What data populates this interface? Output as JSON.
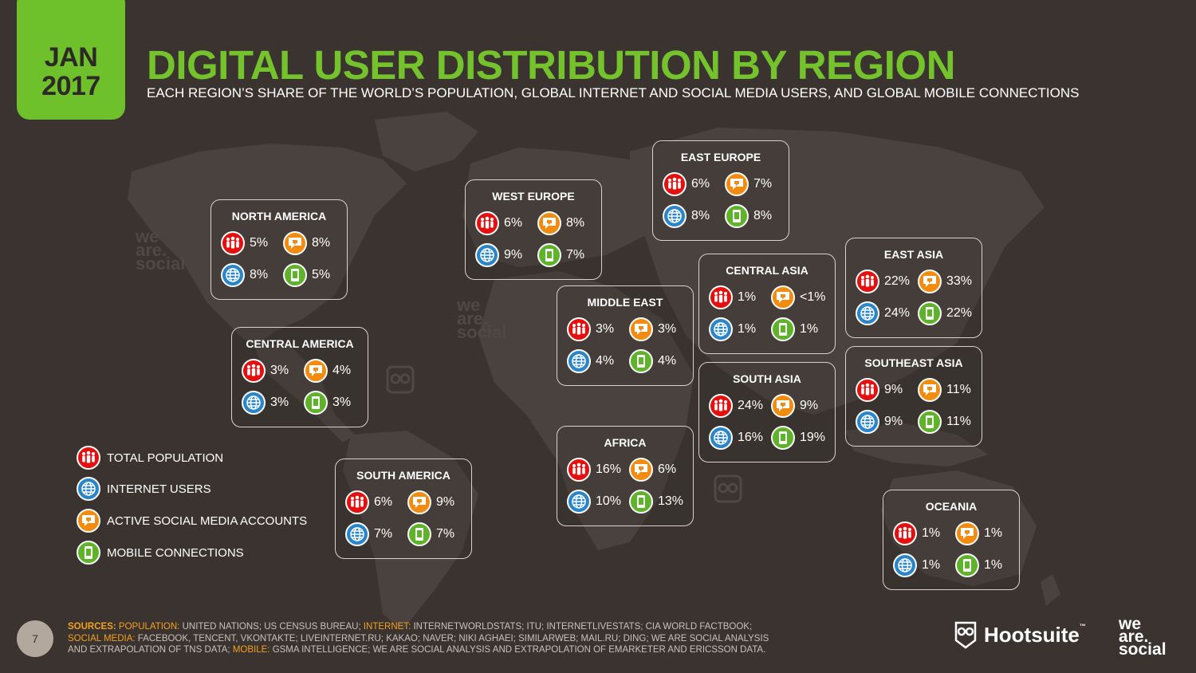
{
  "badge": {
    "month": "JAN",
    "year": "2017"
  },
  "title": "DIGITAL USER DISTRIBUTION BY REGION",
  "subtitle": "EACH REGION’S SHARE OF THE WORLD’S POPULATION, GLOBAL INTERNET AND SOCIAL MEDIA USERS, AND GLOBAL MOBILE CONNECTIONS",
  "colors": {
    "population": "#e3100f",
    "internet": "#2a86c8",
    "social": "#f28c10",
    "mobile": "#5fb32a",
    "accent": "#74c32d"
  },
  "icons": {
    "population": "people-icon",
    "internet": "globe-icon",
    "social": "thumbs-down-speech-icon",
    "mobile": "mobile-phone-icon"
  },
  "regions": [
    {
      "name": "NORTH AMERICA",
      "population": "5%",
      "social": "8%",
      "internet": "8%",
      "mobile": "5%"
    },
    {
      "name": "CENTRAL AMERICA",
      "population": "3%",
      "social": "4%",
      "internet": "3%",
      "mobile": "3%"
    },
    {
      "name": "SOUTH AMERICA",
      "population": "6%",
      "social": "9%",
      "internet": "7%",
      "mobile": "7%"
    },
    {
      "name": "WEST EUROPE",
      "population": "6%",
      "social": "8%",
      "internet": "9%",
      "mobile": "7%"
    },
    {
      "name": "EAST EUROPE",
      "population": "6%",
      "social": "7%",
      "internet": "8%",
      "mobile": "8%"
    },
    {
      "name": "MIDDLE EAST",
      "population": "3%",
      "social": "3%",
      "internet": "4%",
      "mobile": "4%"
    },
    {
      "name": "AFRICA",
      "population": "16%",
      "social": "6%",
      "internet": "10%",
      "mobile": "13%"
    },
    {
      "name": "CENTRAL ASIA",
      "population": "1%",
      "social": "<1%",
      "internet": "1%",
      "mobile": "1%"
    },
    {
      "name": "SOUTH ASIA",
      "population": "24%",
      "social": "9%",
      "internet": "16%",
      "mobile": "19%"
    },
    {
      "name": "EAST ASIA",
      "population": "22%",
      "social": "33%",
      "internet": "24%",
      "mobile": "22%"
    },
    {
      "name": "SOUTHEAST ASIA",
      "population": "9%",
      "social": "11%",
      "internet": "9%",
      "mobile": "11%"
    },
    {
      "name": "OCEANIA",
      "population": "1%",
      "social": "1%",
      "internet": "1%",
      "mobile": "1%"
    }
  ],
  "legend": {
    "population": "TOTAL POPULATION",
    "internet": "INTERNET USERS",
    "social": "ACTIVE SOCIAL MEDIA ACCOUNTS",
    "mobile": "MOBILE CONNECTIONS"
  },
  "page_number": "7",
  "sources": {
    "k_sources": "SOURCES:",
    "k_population": "POPULATION:",
    "t_population": "UNITED NATIONS; US CENSUS BUREAU;",
    "k_internet": "INTERNET:",
    "t_internet": "INTERNETWORLDSTATS; ITU; INTERNETLIVESTATS; CIA WORLD FACTBOOK;",
    "k_social": "SOCIAL MEDIA:",
    "t_social": "FACEBOOK, TENCENT, VKONTAKTE; LIVEINTERNET.RU; KAKAO; NAVER; NIKI AGHAEI; SIMILARWEB; MAIL.RU; DING; WE ARE SOCIAL ANALYSIS AND EXTRAPOLATION OF TNS DATA;",
    "k_mobile": "MOBILE:",
    "t_mobile": "GSMA INTELLIGENCE; WE ARE SOCIAL ANALYSIS AND EXTRAPOLATION OF EMARKETER AND ERICSSON DATA."
  },
  "brand": {
    "hootsuite": "Hootsuite",
    "tm": "™",
    "was1": "we",
    "was2": "are.",
    "was3": "social"
  },
  "watermark": {
    "w1": "we",
    "w2": "are.",
    "w3": "social"
  }
}
